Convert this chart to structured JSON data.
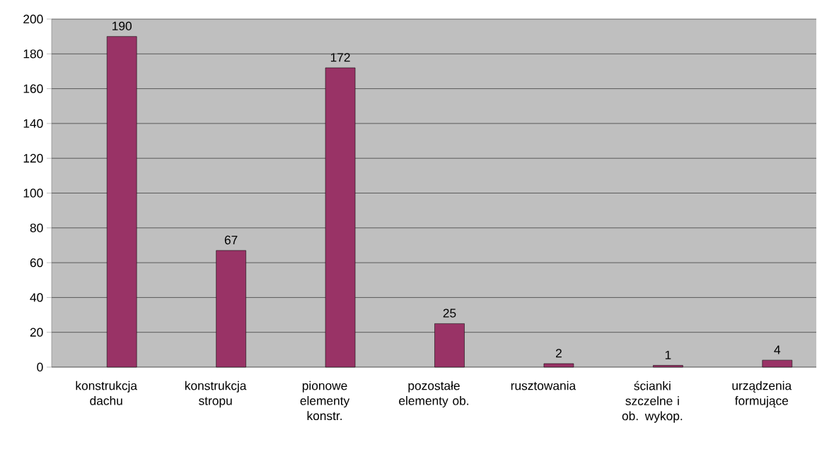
{
  "chart_data": {
    "type": "bar",
    "categories": [
      "konstrukcja dachu",
      "konstrukcja stropu",
      "pionowe elementy konstr.",
      "pozostałe elementy ob.",
      "rusztowania",
      "ścianki szczelne i ob. wykop.",
      "urządzenia formujące"
    ],
    "values": [
      190,
      67,
      172,
      25,
      2,
      1,
      4
    ],
    "color": "#993366",
    "ylim": [
      0,
      200
    ],
    "yticks": [
      0,
      20,
      40,
      60,
      80,
      100,
      120,
      140,
      160,
      180,
      200
    ],
    "grid": "y",
    "data_labels": true
  }
}
